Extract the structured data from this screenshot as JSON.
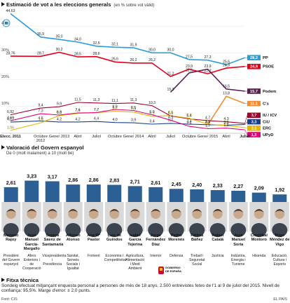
{
  "chart_data": [
    {
      "type": "line",
      "title": "Estimació de vot a les eleccions generals",
      "subtitle": "(en % sobre vot vàlid)",
      "categories": [
        "Elecc. 2011",
        "Octubre 2012",
        "Gener 2013",
        "Abril",
        "Juliol",
        "Octubre",
        "Gener 2014",
        "Abril",
        "Juliol",
        "Octubre",
        "Gener 2015",
        "Abril",
        "Juliol"
      ],
      "ylim": [
        0,
        45
      ],
      "yticks": [
        {
          "value": 10,
          "label": "10%"
        },
        {
          "value": 20,
          "label": "20%"
        },
        {
          "value": 30,
          "label": "30%"
        },
        {
          "value": 40,
          "label": "40%"
        }
      ],
      "grid": true,
      "series": [
        {
          "name": "PP",
          "color": "#2a9ed8",
          "values": [
            44.63,
            35.9,
            35.0,
            34.0,
            32.5,
            32.1,
            31.9,
            30.0,
            30.0,
            27.5,
            27.3,
            25.6,
            28.2
          ],
          "value_labels": [
            "44,63",
            "35,9",
            "35,0",
            "34,0",
            "32,5",
            "32,1",
            "31,9",
            "30,0",
            "30,0",
            "27,5",
            "27,3",
            "25,6",
            "28,2"
          ]
        },
        {
          "name": "PSOE",
          "color": "#e3001b",
          "values": [
            28.76,
            28.7,
            30.2,
            28.5,
            28.6,
            26.6,
            26.2,
            26.2,
            21.2,
            23.9,
            22.2,
            24.3,
            24.9
          ],
          "value_labels": [
            "28,76",
            "28,7",
            "30,2",
            "28,5",
            "28,6",
            "26,6",
            "26,2",
            "26,2",
            "21,2",
            "23,9",
            "22,2",
            "24,3",
            "24,9"
          ]
        },
        {
          "name": "Podem",
          "color": "#5b1e4f",
          "values": [
            null,
            null,
            null,
            null,
            null,
            null,
            null,
            null,
            15.3,
            22.5,
            23.9,
            16.5,
            15.7
          ],
          "value_labels": [
            null,
            null,
            null,
            null,
            null,
            null,
            null,
            null,
            "15,3",
            "22,5",
            "23,9",
            "16,5",
            "15,7"
          ]
        },
        {
          "name": "C's",
          "color": "#f58b2a",
          "values": [
            null,
            null,
            null,
            null,
            null,
            null,
            null,
            null,
            null,
            null,
            3.1,
            13.8,
            11.1
          ],
          "value_labels": [
            null,
            null,
            null,
            null,
            null,
            null,
            null,
            null,
            null,
            null,
            "3,1",
            "13,8",
            "11,1"
          ]
        },
        {
          "name": "IU / ICV",
          "color": "#a3002a",
          "values": [
            6.92,
            9.4,
            9.9,
            11.5,
            11.3,
            11.1,
            11.3,
            10.3,
            6.5,
            5.4,
            4.7,
            4.3,
            3.7
          ],
          "value_labels": [
            "6,92",
            "9,4",
            "9,9",
            "11,5",
            "11,3",
            "11,1",
            "11,3",
            "10,3",
            "6,5",
            "5,4",
            "4,7",
            "4,3",
            "3,7"
          ]
        },
        {
          "name": "CiU",
          "color": "#1c3f8a",
          "values": [
            4.17,
            4.6,
            4.2,
            4.2,
            4.4,
            4.0,
            3.9,
            3.4,
            3.7,
            3.4,
            3.2,
            3.0,
            3.3
          ],
          "value_labels": [
            "4,17",
            "4,6",
            "4,2",
            "4,2",
            "4,4",
            "4,0",
            "3,9",
            "3,4",
            "3,7",
            "3,4",
            "3,2",
            "3,0",
            "3,3"
          ]
        },
        {
          "name": "ERC",
          "color": "#e8b400",
          "values": [
            1.06,
            3.9,
            6.6,
            7.4,
            7.7,
            8.2,
            7.9,
            6.3,
            6.6,
            5.6,
            3.4,
            2.9,
            2.1
          ],
          "value_labels": [
            "1,06",
            "3,9",
            "6,6",
            "7,4",
            "7,7",
            "8,2",
            "7,9",
            "6,3",
            "6,6",
            "5,6",
            "3,4",
            "2,9",
            "2,1"
          ]
        },
        {
          "name": "UPyD",
          "color": "#e2007a",
          "values": [
            4.69,
            7.3,
            6.8,
            7.6,
            7.7,
            8.9,
            8.5,
            6.9,
            4.9,
            2.6,
            1.7,
            1.9,
            1.3
          ],
          "value_labels": [
            "4,69",
            "7,3",
            "6,8",
            "7,6",
            "7,7",
            "8,9",
            "8,5",
            "6,9",
            "4,9",
            "2,6",
            "1,7",
            "1,9",
            "1,3"
          ]
        }
      ]
    },
    {
      "type": "bar",
      "title": "Valoració del Govern espanyol",
      "subtitle": "De 0 (molt malament) a 10 (molt bé)",
      "color": "#2c5f94",
      "categories": [
        "Mariano Rajoy",
        "José Manuel García-Margallo",
        "Soraya Sáenz de Santamaría",
        "Alfonso Alonso",
        "Ana Mª Pastor",
        "Luis de Guindos",
        "Isabel García Tejerina",
        "Jorge Fernández Díaz",
        "Pedro Morenés",
        "Fátima Báñez",
        "Rafael Catalá",
        "José Manuel Soria",
        "Cristóbal Montoro",
        "Íñigo Méndez de Vigo"
      ],
      "roles": [
        "President del Govern espanyol",
        "Afers Exteriors i de Cooperació",
        "Vicepresidenta i Presidència",
        "Sanitat, Serveis Socials i Igualtat",
        "Foment",
        "Economia i Competitivitat",
        "Agricultura, Alimentació i Medi Ambient",
        "Interior",
        "Defensa",
        "Treball i Seguretat Social",
        "Justícia",
        "Indústria, Energia i Turisme",
        "Hisenda",
        "Educació, Cultura i Esports"
      ],
      "values": [
        2.61,
        3.23,
        3.17,
        2.86,
        2.86,
        2.83,
        2.71,
        2.61,
        2.45,
        2.4,
        2.33,
        2.27,
        2.09,
        1.92
      ],
      "value_labels": [
        "2,61",
        "3,23",
        "3,17",
        "2,86",
        "2,86",
        "2,83",
        "2,71",
        "2,61",
        "2,45",
        "2,40",
        "2,33",
        "2,27",
        "2,09",
        "1,92"
      ]
    }
  ],
  "logo": {
    "text": "GOBIERNO DE ESPAÑA"
  },
  "footer": {
    "title": "Fitxa tècnica",
    "text": "Sondeig efectuat mitjançant enquesta personal a persones de més de 18 anys. 2.500 entrevistes fetes de l'1 al 9 de juliol del 2015. Nivell de confiança: 95,5%. Marge d'error: ± 2,0 punts.",
    "source": "Font: CIS",
    "credit": "EL PAÍS"
  }
}
